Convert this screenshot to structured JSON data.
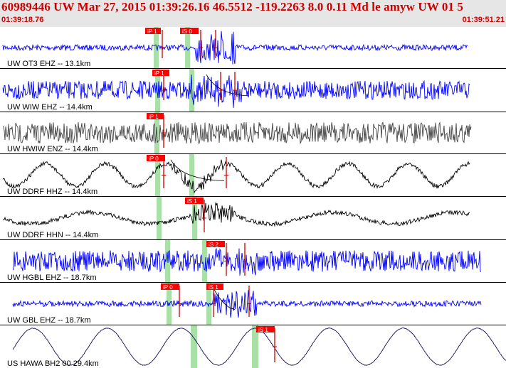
{
  "header": {
    "title": "60989446 UW Mar 27, 2015 01:39:26.16    46.5512 -119.2263  8.0 0.11 Md le amyw UW 01    5",
    "time_start": "01:39:18.76",
    "time_end": "01:39:51.21"
  },
  "colors": {
    "header_bg": "#e6e6e6",
    "header_text": "#cc0000",
    "pick_box": "#ff0000",
    "pick_line": "#cc0000",
    "window_green": "#a8e0a8",
    "trace_blue": "#0000ff",
    "trace_gray": "#444444",
    "trace_black": "#000000",
    "trace_navy": "#1a0a5a"
  },
  "traces": [
    {
      "label": "UW OT3 EHZ -- 13.1km",
      "color": "#0000ff",
      "picks": [
        "iP 1",
        "iS 0"
      ]
    },
    {
      "label": "UW WIW EHZ -- 14.4km",
      "color": "#0000ff",
      "picks": [
        "iP 1"
      ]
    },
    {
      "label": "UW HWIW ENZ -- 14.4km",
      "color": "#444444",
      "picks": [
        "iP 1"
      ]
    },
    {
      "label": "UW DDRF HHZ -- 14.4km",
      "color": "#000000",
      "picks": [
        "iP 0"
      ]
    },
    {
      "label": "UW DDRF HHN -- 14.4km",
      "color": "#000000",
      "picks": [
        "iS 1"
      ]
    },
    {
      "label": "UW HGBL EHZ -- 18.7km",
      "color": "#0000ff",
      "picks": [
        "iS 2"
      ]
    },
    {
      "label": "UW GBL EHZ -- 18.7km",
      "color": "#0000ff",
      "picks": [
        "iP 0",
        "iS 1"
      ]
    },
    {
      "label": "US HAWA BH2 00 29.4km",
      "color": "#1a0a5a",
      "picks": [
        "iS 1"
      ]
    }
  ]
}
